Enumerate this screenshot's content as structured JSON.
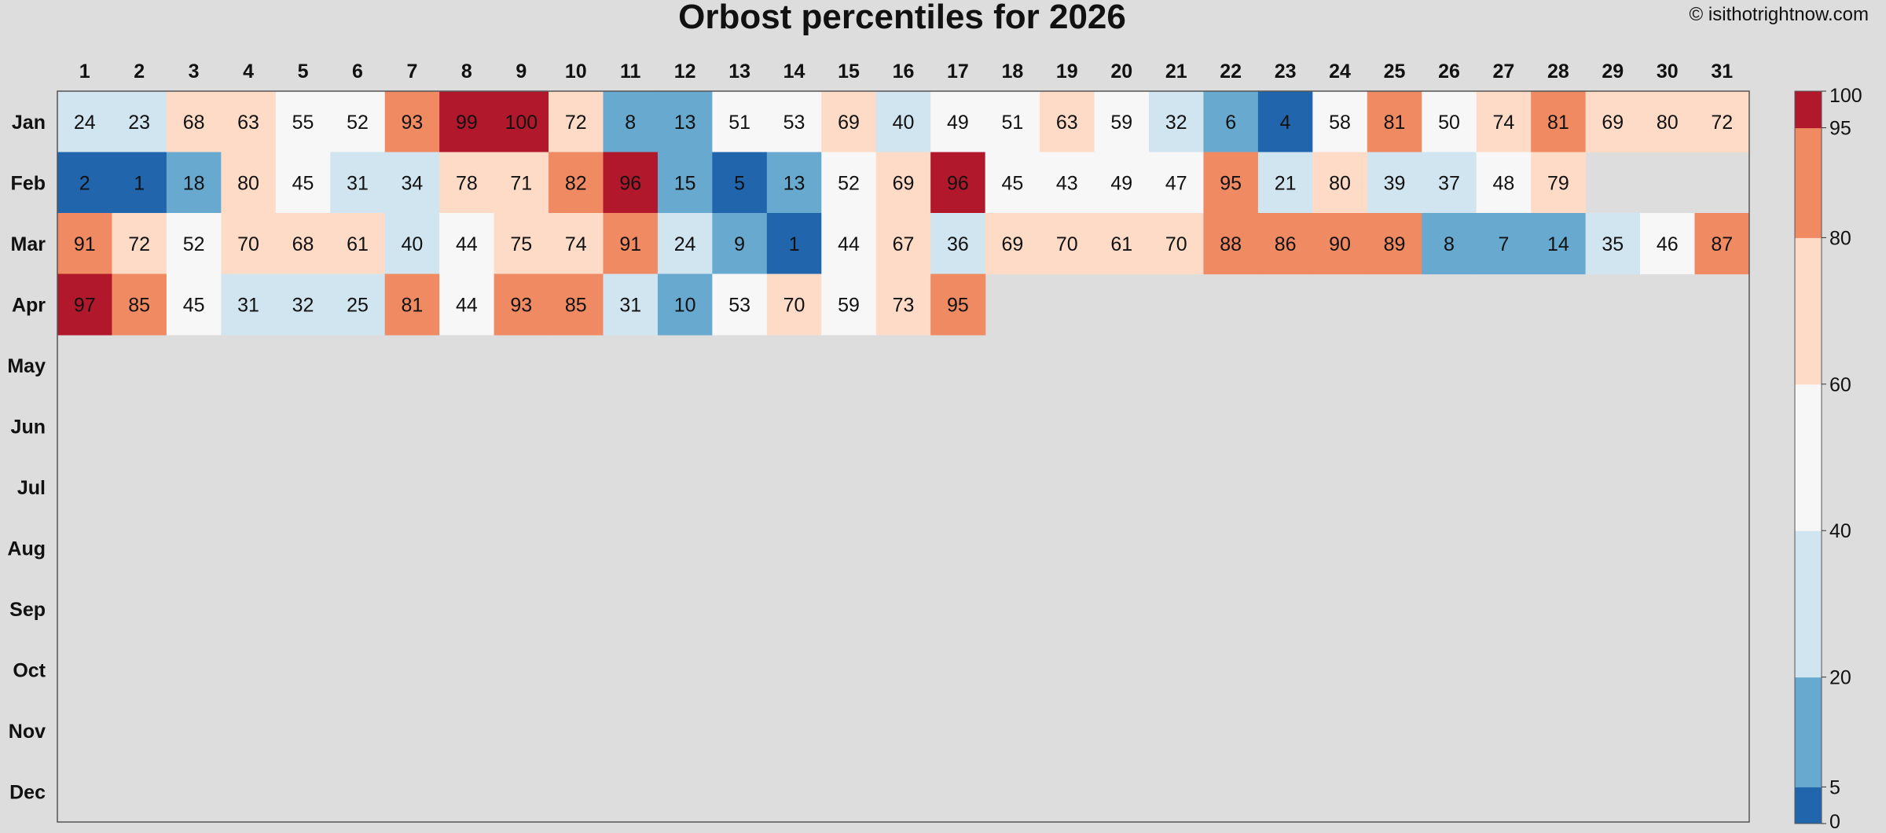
{
  "title": "Orbost percentiles for 2026",
  "credit": "© isithotrightnow.com",
  "chart_data": {
    "type": "heatmap",
    "title": "Orbost percentiles for 2026",
    "x_labels": [
      "1",
      "2",
      "3",
      "4",
      "5",
      "6",
      "7",
      "8",
      "9",
      "10",
      "11",
      "12",
      "13",
      "14",
      "15",
      "16",
      "17",
      "18",
      "19",
      "20",
      "21",
      "22",
      "23",
      "24",
      "25",
      "26",
      "27",
      "28",
      "29",
      "30",
      "31"
    ],
    "y_labels": [
      "Jan",
      "Feb",
      "Mar",
      "Apr",
      "May",
      "Jun",
      "Jul",
      "Aug",
      "Sep",
      "Oct",
      "Nov",
      "Dec"
    ],
    "values": [
      [
        24,
        23,
        68,
        63,
        55,
        52,
        93,
        99,
        100,
        72,
        8,
        13,
        51,
        53,
        69,
        40,
        49,
        51,
        63,
        59,
        32,
        6,
        4,
        58,
        81,
        50,
        74,
        81,
        69,
        80,
        72
      ],
      [
        2,
        1,
        18,
        80,
        45,
        31,
        34,
        78,
        71,
        82,
        96,
        15,
        5,
        13,
        52,
        69,
        96,
        45,
        43,
        49,
        47,
        95,
        21,
        80,
        39,
        37,
        48,
        79
      ],
      [
        91,
        72,
        52,
        70,
        68,
        61,
        40,
        44,
        75,
        74,
        91,
        24,
        9,
        1,
        44,
        67,
        36,
        69,
        70,
        61,
        70,
        88,
        86,
        90,
        89,
        8,
        7,
        14,
        35,
        46,
        87
      ],
      [
        97,
        85,
        45,
        31,
        32,
        25,
        81,
        44,
        93,
        85,
        31,
        10,
        53,
        70,
        59,
        73,
        95
      ],
      [],
      [],
      [],
      [],
      [],
      [],
      [],
      []
    ],
    "colorbar": {
      "ticks": [
        0,
        5,
        20,
        40,
        60,
        80,
        95,
        100
      ],
      "bins": [
        {
          "from": 0,
          "to": 5,
          "color": "#2166ac"
        },
        {
          "from": 5,
          "to": 20,
          "color": "#67a9cf"
        },
        {
          "from": 20,
          "to": 40,
          "color": "#d1e5f0"
        },
        {
          "from": 40,
          "to": 60,
          "color": "#f7f7f7"
        },
        {
          "from": 60,
          "to": 80,
          "color": "#fddbc7"
        },
        {
          "from": 80,
          "to": 95,
          "color": "#ef8a62"
        },
        {
          "from": 95,
          "to": 100,
          "color": "#b2182b"
        }
      ]
    },
    "background_color": "#dddddd",
    "text_color": "#111111",
    "legend_position": "right"
  }
}
